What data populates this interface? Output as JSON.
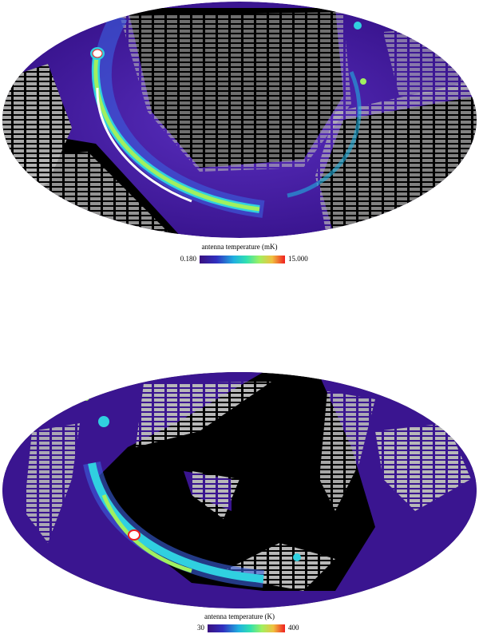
{
  "panels": [
    {
      "colorbar": {
        "label": "antenna temperature (mK)",
        "min": "0.180",
        "max": "15.000"
      }
    },
    {
      "colorbar": {
        "label": "antenna temperature (K)",
        "min": "30",
        "max": "400"
      }
    }
  ]
}
